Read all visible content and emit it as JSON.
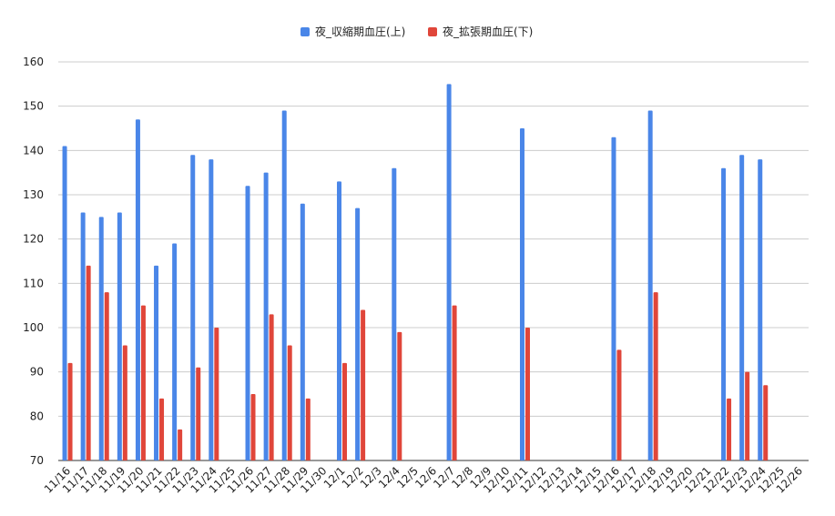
{
  "chart_data": {
    "type": "bar",
    "title": "",
    "xlabel": "",
    "ylabel": "",
    "ylim": [
      70,
      160
    ],
    "yticks": [
      70,
      80,
      90,
      100,
      110,
      120,
      130,
      140,
      150,
      160
    ],
    "grid": true,
    "legend_position": "top",
    "categories": [
      "11/16",
      "11/17",
      "11/18",
      "11/19",
      "11/20",
      "11/21",
      "11/22",
      "11/23",
      "11/24",
      "11/25",
      "11/26",
      "11/27",
      "11/28",
      "11/29",
      "11/30",
      "12/1",
      "12/2",
      "12/3",
      "12/4",
      "12/5",
      "12/6",
      "12/7",
      "12/8",
      "12/9",
      "12/10",
      "12/11",
      "12/12",
      "12/13",
      "12/14",
      "12/15",
      "12/16",
      "12/17",
      "12/18",
      "12/19",
      "12/20",
      "12/21",
      "12/22",
      "12/23",
      "12/24",
      "12/25",
      "12/26"
    ],
    "series": [
      {
        "name": "夜_収縮期血圧(上)",
        "color": "#4a86e8",
        "values": [
          141,
          126,
          125,
          126,
          147,
          114,
          119,
          139,
          138,
          null,
          132,
          135,
          149,
          128,
          null,
          133,
          127,
          null,
          136,
          null,
          null,
          155,
          null,
          null,
          null,
          145,
          null,
          null,
          null,
          null,
          143,
          null,
          149,
          null,
          null,
          null,
          136,
          139,
          138,
          null,
          null
        ]
      },
      {
        "name": "夜_拡張期血圧(下)",
        "color": "#e0463a",
        "values": [
          92,
          114,
          108,
          96,
          105,
          84,
          77,
          91,
          100,
          null,
          85,
          103,
          96,
          84,
          null,
          92,
          104,
          null,
          99,
          null,
          null,
          105,
          null,
          null,
          null,
          100,
          null,
          null,
          null,
          null,
          95,
          null,
          108,
          null,
          null,
          null,
          84,
          90,
          87,
          null,
          null
        ]
      }
    ]
  }
}
